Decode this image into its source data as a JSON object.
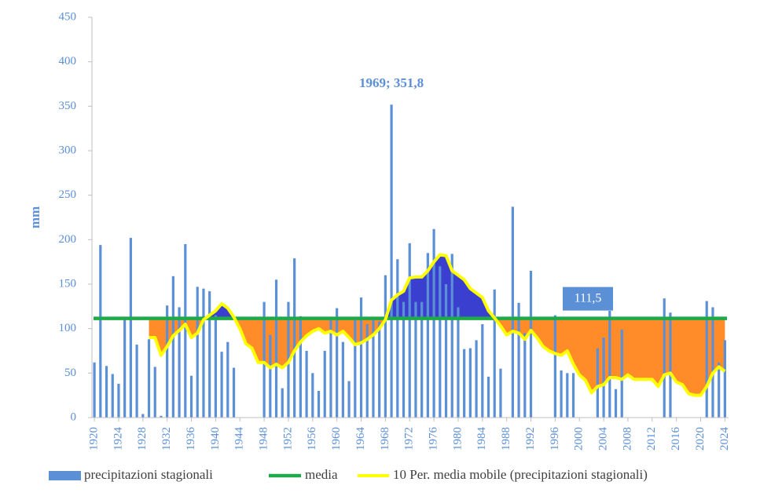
{
  "chart_data": {
    "type": "bar",
    "y_label": "mm",
    "x": [
      1920,
      1921,
      1922,
      1923,
      1924,
      1925,
      1926,
      1927,
      1928,
      1929,
      1930,
      1931,
      1932,
      1933,
      1934,
      1935,
      1936,
      1937,
      1938,
      1939,
      1940,
      1941,
      1942,
      1943,
      1944,
      1945,
      1946,
      1947,
      1948,
      1949,
      1950,
      1951,
      1952,
      1953,
      1954,
      1955,
      1956,
      1957,
      1958,
      1959,
      1960,
      1961,
      1962,
      1963,
      1964,
      1965,
      1966,
      1967,
      1968,
      1969,
      1970,
      1971,
      1972,
      1973,
      1974,
      1975,
      1976,
      1977,
      1978,
      1979,
      1980,
      1981,
      1982,
      1983,
      1984,
      1985,
      1986,
      1987,
      1988,
      1989,
      1990,
      1991,
      1992,
      1993,
      1994,
      1995,
      1996,
      1997,
      1998,
      1999,
      2000,
      2001,
      2002,
      2003,
      2004,
      2005,
      2006,
      2007,
      2008,
      2009,
      2010,
      2011,
      2012,
      2013,
      2014,
      2015,
      2016,
      2017,
      2018,
      2019,
      2020,
      2021,
      2022,
      2023,
      2024
    ],
    "series": [
      {
        "name": "precipitazioni stagionali",
        "color": "#5b8fd6",
        "values": [
          62,
          194,
          58,
          49,
          38,
          110,
          202,
          82,
          4,
          88,
          57,
          2,
          126,
          159,
          124,
          195,
          47,
          147,
          145,
          142,
          115,
          74,
          85,
          56,
          0,
          0,
          0,
          0,
          130,
          93,
          155,
          33,
          130,
          179,
          114,
          75,
          50,
          30,
          75,
          110,
          123,
          85,
          41,
          110,
          135,
          105,
          110,
          108,
          160,
          351.8,
          178,
          130,
          196,
          130,
          130,
          185,
          212,
          170,
          150,
          184,
          124,
          77,
          78,
          87,
          105,
          46,
          144,
          55,
          0,
          237,
          129,
          95,
          165,
          0,
          0,
          0,
          115,
          53,
          50,
          50,
          0,
          0,
          0,
          78,
          90,
          120,
          32,
          99,
          0,
          0,
          0,
          0,
          0,
          0,
          134,
          118,
          0,
          0,
          0,
          0,
          0,
          131,
          124,
          62,
          87
        ]
      },
      {
        "name": "10 Per. media mobile (precipitazioni stagionali)",
        "color": "#ffff00",
        "values": [
          null,
          null,
          null,
          null,
          null,
          null,
          null,
          null,
          null,
          90,
          90,
          70,
          80,
          92,
          98,
          105,
          90,
          95,
          110,
          115,
          120,
          128,
          123,
          113,
          100,
          83,
          78,
          62,
          62,
          56,
          60,
          56,
          62,
          75,
          85,
          92,
          97,
          100,
          95,
          97,
          93,
          97,
          90,
          82,
          84,
          88,
          93,
          100,
          110,
          132,
          138,
          142,
          157,
          158,
          158,
          165,
          175,
          183,
          182,
          165,
          160,
          155,
          145,
          140,
          135,
          120,
          112,
          103,
          93,
          97,
          95,
          88,
          98,
          90,
          80,
          75,
          72,
          70,
          75,
          60,
          48,
          42,
          28,
          35,
          37,
          45,
          45,
          43,
          48,
          43,
          43,
          43,
          43,
          35,
          48,
          50,
          40,
          37,
          27,
          25,
          25,
          35,
          50,
          57,
          52
        ]
      }
    ],
    "reference_line": {
      "name": "media",
      "value": 111.5,
      "label": "111,5",
      "color": "#1faa4a"
    },
    "area_colors": {
      "above": "#3a3fcf",
      "below": "#ff8c28"
    },
    "annotation": {
      "text": "1969; 351,8",
      "x": 1969,
      "y": 351.8
    },
    "xlim": [
      1919.6,
      2024.6
    ],
    "xticks": [
      1920,
      1924,
      1928,
      1932,
      1936,
      1940,
      1944,
      1948,
      1952,
      1956,
      1960,
      1964,
      1968,
      1972,
      1976,
      1980,
      1984,
      1988,
      1992,
      1996,
      2000,
      2004,
      2008,
      2012,
      2016,
      2020,
      2024
    ],
    "ylim": [
      0,
      450
    ],
    "yticks": [
      0,
      50,
      100,
      150,
      200,
      250,
      300,
      350,
      400,
      450
    ]
  }
}
